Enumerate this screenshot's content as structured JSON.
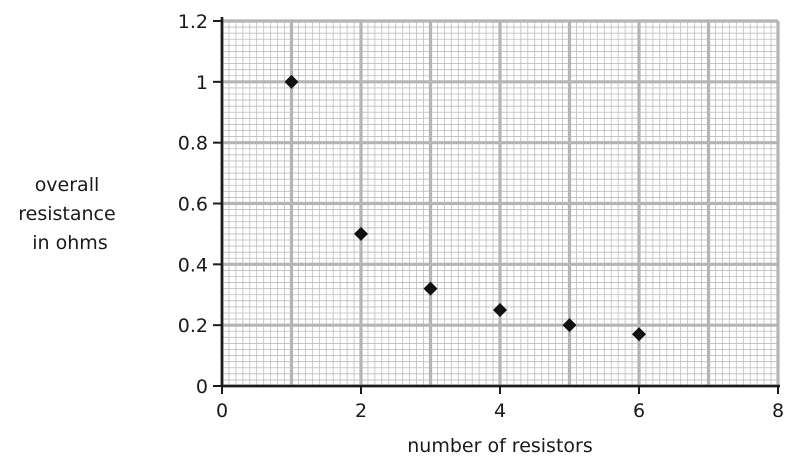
{
  "chart_data": {
    "type": "scatter",
    "title": "",
    "xlabel": "number of resistors",
    "ylabel_lines": [
      "overall",
      "resistance",
      "in ohms"
    ],
    "xlim": [
      0,
      8
    ],
    "ylim": [
      0,
      1.2
    ],
    "x_ticks": [
      0,
      2,
      4,
      6,
      8
    ],
    "x_tick_labels": [
      "0",
      "2",
      "4",
      "6",
      "8"
    ],
    "y_ticks": [
      0,
      0.2,
      0.4,
      0.6,
      0.8,
      1,
      1.2
    ],
    "y_tick_labels": [
      "0",
      "0.2",
      "0.4",
      "0.6",
      "0.8",
      "1",
      "1.2"
    ],
    "grid": true,
    "points": [
      {
        "x": 1,
        "y": 1.0
      },
      {
        "x": 2,
        "y": 0.5
      },
      {
        "x": 3,
        "y": 0.32
      },
      {
        "x": 4,
        "y": 0.25
      },
      {
        "x": 5,
        "y": 0.2
      },
      {
        "x": 6,
        "y": 0.17
      }
    ],
    "marker": "diamond",
    "colors": {
      "major_grid": "#b5b5b5",
      "minor_grid": "#bdbdbd",
      "axis": "#1a1a1a",
      "marker": "#111111"
    }
  }
}
